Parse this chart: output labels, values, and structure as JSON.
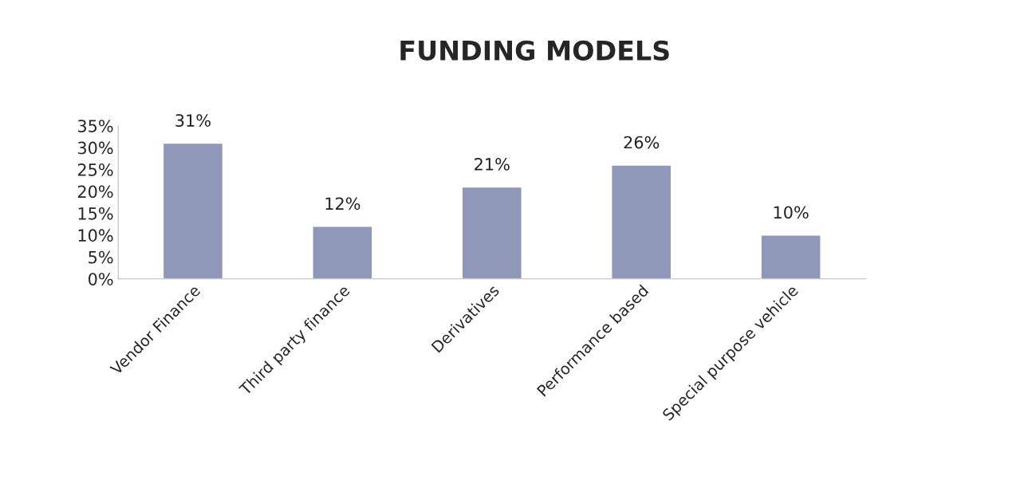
{
  "chart_data": {
    "type": "bar",
    "title": "FUNDING MODELS",
    "categories": [
      "Vendor Finance",
      "Third party finance",
      "Derivatives",
      "Performance based",
      "Special purpose vehicle"
    ],
    "values": [
      31,
      12,
      21,
      26,
      10
    ],
    "value_labels": [
      "31%",
      "12%",
      "21%",
      "26%",
      "10%"
    ],
    "color": "#8f98b9",
    "ylim": [
      0,
      35
    ],
    "yticks": [
      {
        "value": 0,
        "label": "0%"
      },
      {
        "value": 5,
        "label": "5%"
      },
      {
        "value": 10,
        "label": "10%"
      },
      {
        "value": 15,
        "label": "15%"
      },
      {
        "value": 20,
        "label": "20%"
      },
      {
        "value": 25,
        "label": "25%"
      },
      {
        "value": 30,
        "label": "30%"
      },
      {
        "value": 35,
        "label": "35%"
      }
    ],
    "grid": false,
    "legend": false
  }
}
